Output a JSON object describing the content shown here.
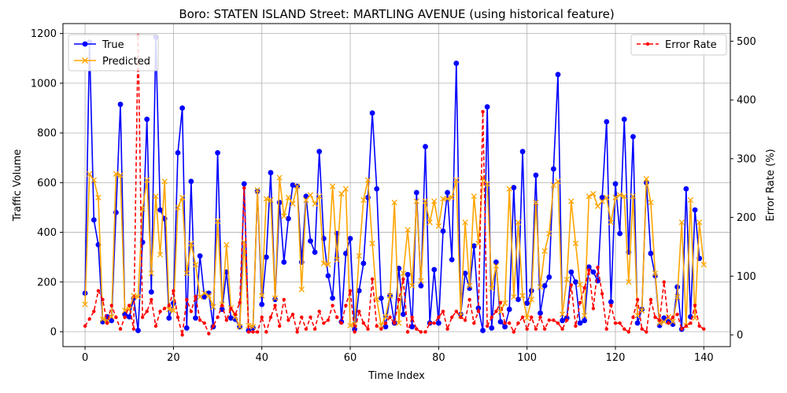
{
  "chart_data": {
    "type": "line",
    "title": "Boro: STATEN ISLAND Street: MARTLING AVENUE (using historical feature)",
    "xlabel": "Time Index",
    "ylabel": "Traffic Volume",
    "y2label": "Error Rate (%)",
    "xlim": [
      -5,
      146
    ],
    "ylim": [
      -60,
      1240
    ],
    "y2lim": [
      -20,
      530
    ],
    "xticks": [
      0,
      20,
      40,
      60,
      80,
      100,
      120,
      140
    ],
    "yticks": [
      0,
      200,
      400,
      600,
      800,
      1000,
      1200
    ],
    "y2ticks": [
      0,
      100,
      200,
      300,
      400,
      500
    ],
    "grid": true,
    "legend_left_placement": "upper-left",
    "legend_right_placement": "upper-right",
    "colors": {
      "true": "#0000ff",
      "predicted": "#ffa500",
      "error": "#ff0000"
    },
    "series": [
      {
        "name": "True",
        "axis": "left",
        "marker": "circle",
        "values": [
          155,
          1165,
          450,
          350,
          40,
          60,
          45,
          480,
          915,
          70,
          60,
          135,
          5,
          360,
          855,
          160,
          1185,
          490,
          455,
          55,
          115,
          720,
          900,
          15,
          605,
          55,
          305,
          140,
          155,
          20,
          720,
          90,
          240,
          55,
          50,
          20,
          595,
          5,
          15,
          565,
          110,
          300,
          640,
          130,
          520,
          280,
          455,
          590,
          585,
          280,
          545,
          365,
          320,
          725,
          375,
          225,
          135,
          395,
          40,
          315,
          375,
          10,
          165,
          275,
          540,
          880,
          575,
          135,
          20,
          145,
          35,
          255,
          70,
          230,
          20,
          560,
          185,
          745,
          35,
          250,
          35,
          405,
          560,
          290,
          1080,
          70,
          235,
          175,
          345,
          95,
          5,
          905,
          15,
          280,
          40,
          20,
          90,
          580,
          130,
          725,
          115,
          165,
          630,
          75,
          185,
          220,
          655,
          1035,
          45,
          55,
          240,
          200,
          35,
          45,
          260,
          240,
          205,
          540,
          845,
          120,
          595,
          395,
          855,
          320,
          785,
          35,
          90,
          600,
          315,
          225,
          25,
          55,
          40,
          30,
          180,
          10,
          575,
          60,
          490,
          295
        ],
        "values_note": null
      },
      {
        "name": "Predicted",
        "axis": "left",
        "marker": "x",
        "values": [
          110,
          635,
          610,
          540,
          50,
          45,
          60,
          635,
          630,
          85,
          90,
          145,
          140,
          495,
          610,
          235,
          545,
          310,
          605,
          90,
          85,
          500,
          540,
          235,
          355,
          270,
          140,
          155,
          145,
          100,
          445,
          110,
          350,
          95,
          60,
          20,
          360,
          25,
          20,
          570,
          145,
          535,
          530,
          135,
          620,
          465,
          540,
          515,
          585,
          170,
          530,
          550,
          515,
          545,
          275,
          270,
          585,
          290,
          555,
          575,
          25,
          30,
          305,
          530,
          610,
          355,
          130,
          25,
          60,
          145,
          520,
          35,
          235,
          410,
          185,
          525,
          205,
          525,
          440,
          525,
          425,
          535,
          535,
          540,
          610,
          65,
          440,
          185,
          545,
          355,
          620,
          595,
          175,
          265,
          80,
          115,
          575,
          140,
          440,
          145,
          55,
          130,
          520,
          180,
          325,
          395,
          590,
          605,
          70,
          210,
          525,
          355,
          190,
          65,
          545,
          555,
          505,
          525,
          540,
          440,
          540,
          550,
          545,
          200,
          545,
          65,
          85,
          615,
          520,
          235,
          35,
          40,
          60,
          40,
          140,
          440,
          25,
          530,
          55,
          440,
          270
        ]
      },
      {
        "name": "Error Rate",
        "axis": "right",
        "marker": "dot",
        "dashed": true,
        "values": [
          15,
          27,
          40,
          75,
          60,
          20,
          50,
          30,
          10,
          30,
          50,
          10,
          510,
          30,
          40,
          60,
          15,
          40,
          45,
          50,
          75,
          30,
          0,
          60,
          40,
          65,
          25,
          20,
          2,
          15,
          30,
          50,
          25,
          45,
          35,
          55,
          250,
          5,
          5,
          5,
          30,
          5,
          30,
          50,
          15,
          60,
          25,
          35,
          5,
          30,
          10,
          30,
          10,
          40,
          20,
          25,
          50,
          30,
          20,
          50,
          75,
          5,
          40,
          20,
          10,
          95,
          15,
          10,
          20,
          30,
          20,
          60,
          95,
          5,
          30,
          10,
          5,
          5,
          20,
          20,
          30,
          40,
          10,
          30,
          40,
          30,
          25,
          60,
          20,
          40,
          380,
          15,
          30,
          40,
          55,
          20,
          20,
          5,
          20,
          30,
          10,
          30,
          10,
          30,
          10,
          25,
          25,
          20,
          10,
          25,
          85,
          15,
          55,
          80,
          110,
          45,
          115,
          70,
          10,
          50,
          20,
          20,
          10,
          5,
          30,
          60,
          10,
          5,
          60,
          30,
          25,
          90,
          20,
          30,
          35,
          10,
          15,
          20,
          50,
          15,
          10
        ]
      }
    ]
  }
}
